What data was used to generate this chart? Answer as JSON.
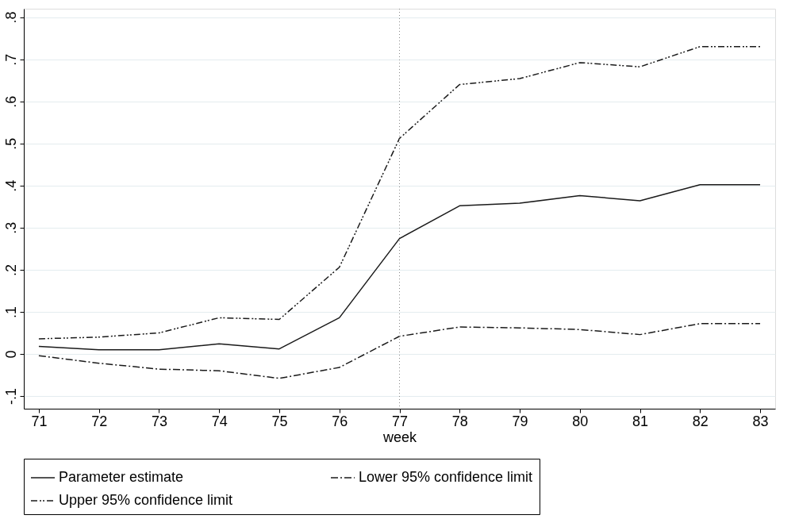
{
  "chart_data": {
    "type": "line",
    "xlabel": "week",
    "x": [
      71,
      72,
      73,
      74,
      75,
      76,
      77,
      78,
      79,
      80,
      81,
      82,
      83
    ],
    "series": [
      {
        "name": "Parameter estimate",
        "color": "#1a1a1a",
        "line_style": "solid",
        "values": [
          0.018,
          0.01,
          0.01,
          0.024,
          0.012,
          0.086,
          0.274,
          0.352,
          0.358,
          0.376,
          0.364,
          0.402,
          0.402
        ]
      },
      {
        "name": "Lower 95% confidence limit",
        "color": "#1a1a1a",
        "line_style": "dashed",
        "values": [
          -0.004,
          -0.022,
          -0.036,
          -0.04,
          -0.058,
          -0.032,
          0.042,
          0.064,
          0.062,
          0.058,
          0.046,
          0.072,
          0.072
        ]
      },
      {
        "name": "Upper 95% confidence limit",
        "color": "#1a1a1a",
        "line_style": "dashed",
        "values": [
          0.036,
          0.04,
          0.05,
          0.086,
          0.082,
          0.206,
          0.512,
          0.64,
          0.654,
          0.692,
          0.682,
          0.73,
          0.73
        ]
      }
    ],
    "xlim": [
      70.75,
      83.25
    ],
    "xticks": [
      71,
      72,
      73,
      74,
      75,
      76,
      77,
      78,
      79,
      80,
      81,
      82,
      83
    ],
    "ylim": [
      -0.13,
      0.82
    ],
    "yticks": [
      {
        "value": -0.1,
        "label": "-.1"
      },
      {
        "value": 0,
        "label": "0"
      },
      {
        "value": 0.1,
        "label": ".1"
      },
      {
        "value": 0.2,
        "label": ".2"
      },
      {
        "value": 0.3,
        "label": ".3"
      },
      {
        "value": 0.4,
        "label": ".4"
      },
      {
        "value": 0.5,
        "label": ".5"
      },
      {
        "value": 0.6,
        "label": ".6"
      },
      {
        "value": 0.7,
        "label": ".7"
      },
      {
        "value": 0.8,
        "label": ".8"
      }
    ],
    "ref_lines": [
      {
        "axis": "x",
        "value": 77,
        "color": "#888888",
        "line_style": "dotted"
      }
    ],
    "grid": "y",
    "legend": "bottom",
    "marker": "none"
  }
}
